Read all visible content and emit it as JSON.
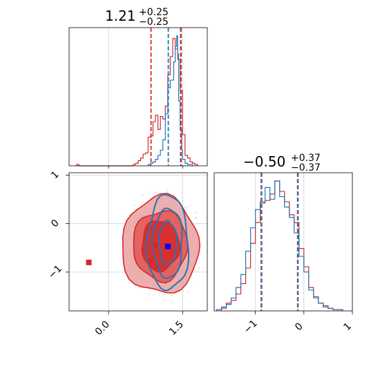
{
  "chart_data": [
    {
      "type": "histogram",
      "panel": "top-left",
      "title_value": "1.21",
      "title_plus": "+0.25",
      "title_minus": "−0.25",
      "xlim": [
        -0.8,
        2.0
      ],
      "grid": true,
      "vlines": [
        {
          "x": 0.86,
          "color": "#d62728"
        },
        {
          "x": 1.21,
          "color": "#1f77b4"
        },
        {
          "x": 1.46,
          "color": "#1f77b4"
        },
        {
          "x": 1.47,
          "color": "#d62728"
        }
      ],
      "series": [
        {
          "color": "#d62728",
          "edges": [
            -0.65,
            -0.6,
            0.5,
            0.55,
            0.6,
            0.65,
            0.7,
            0.75,
            0.8,
            0.85,
            0.9,
            0.95,
            1.0,
            1.05,
            1.1,
            1.15,
            1.2,
            1.25,
            1.3,
            1.35,
            1.4,
            1.45,
            1.5,
            1.55,
            1.6,
            1.65,
            1.7,
            1.75,
            1.8
          ],
          "values": [
            0.01,
            0,
            0.01,
            0.02,
            0.04,
            0.06,
            0.09,
            0.1,
            0.22,
            0.23,
            0.34,
            0.39,
            0.28,
            0.38,
            0.36,
            0.46,
            0.7,
            0.84,
            0.98,
            0.9,
            0.82,
            0.58,
            0.24,
            0.08,
            0.06,
            0.03,
            0.02,
            0.01
          ]
        },
        {
          "color": "#1f77b4",
          "edges": [
            0.8,
            0.85,
            0.9,
            0.95,
            1.0,
            1.05,
            1.1,
            1.15,
            1.2,
            1.25,
            1.3,
            1.32,
            1.35,
            1.38,
            1.4,
            1.42,
            1.45,
            1.48,
            1.5,
            1.55,
            1.6,
            1.65,
            1.7
          ],
          "values": [
            0.01,
            0.02,
            0.03,
            0.05,
            0.08,
            0.12,
            0.2,
            0.4,
            0.6,
            0.66,
            0.66,
            0.8,
            0.92,
            1.0,
            0.86,
            0.5,
            0.28,
            0.12,
            0.05,
            0.02,
            0.01,
            0.01
          ]
        }
      ]
    },
    {
      "type": "scatter",
      "panel": "bottom-left",
      "xlim": [
        -0.8,
        2.0
      ],
      "ylim": [
        -1.8,
        1.05
      ],
      "xticks": [
        0.0,
        1.5
      ],
      "xtick_labels": [
        "0.0",
        "1.5"
      ],
      "yticks": [
        1,
        0,
        -1
      ],
      "ytick_labels": [
        "1",
        "0",
        "−1"
      ],
      "grid": true,
      "series": [
        {
          "name": "",
          "color": "#d62728",
          "marker": "square",
          "points": [
            [
              -0.4,
              -0.8
            ],
            [
              0.85,
              -0.78
            ],
            [
              0.95,
              -0.45
            ]
          ]
        },
        {
          "name": "",
          "color": "#0000ff",
          "marker": "square",
          "points": [
            [
              1.2,
              -0.47
            ]
          ]
        }
      ],
      "contours": [
        {
          "color": "#d62728",
          "center": [
            1.05,
            -0.45
          ],
          "radii": [
            [
              0.78,
              1.0
            ],
            [
              0.55,
              0.72
            ],
            [
              0.38,
              0.52
            ]
          ]
        },
        {
          "color": "#1f77b4",
          "center": [
            1.2,
            -0.4
          ],
          "radii": [
            [
              0.42,
              0.98
            ],
            [
              0.3,
              0.72
            ],
            [
              0.18,
              0.45
            ]
          ]
        }
      ]
    },
    {
      "type": "histogram",
      "panel": "bottom-right",
      "title_value": "−0.50",
      "title_plus": "+0.37",
      "title_minus": "−0.37",
      "xlim": [
        -1.85,
        1.0
      ],
      "xticks": [
        -1,
        0,
        1
      ],
      "xtick_labels": [
        "−1",
        "0",
        "1"
      ],
      "grid": true,
      "vlines": [
        {
          "x": -0.88,
          "color": "#d62728"
        },
        {
          "x": -0.87,
          "color": "#1f77b4"
        },
        {
          "x": -0.13,
          "color": "#d62728"
        },
        {
          "x": -0.12,
          "color": "#1f77b4"
        }
      ],
      "series": [
        {
          "color": "#d62728",
          "edges": [
            -1.7,
            -1.6,
            -1.5,
            -1.4,
            -1.3,
            -1.2,
            -1.1,
            -1.0,
            -0.9,
            -0.8,
            -0.7,
            -0.6,
            -0.5,
            -0.4,
            -0.3,
            -0.2,
            -0.1,
            0.0,
            0.1,
            0.2,
            0.3,
            0.4,
            0.5,
            0.6,
            0.7,
            0.8
          ],
          "values": [
            0.02,
            0.06,
            0.08,
            0.13,
            0.21,
            0.33,
            0.52,
            0.68,
            0.83,
            0.85,
            0.9,
            1.0,
            0.92,
            0.84,
            0.74,
            0.68,
            0.48,
            0.34,
            0.18,
            0.11,
            0.06,
            0.04,
            0.02,
            0.01,
            0.01
          ]
        },
        {
          "color": "#1f77b4",
          "edges": [
            -1.8,
            -1.7,
            -1.6,
            -1.5,
            -1.4,
            -1.3,
            -1.2,
            -1.1,
            -1.0,
            -0.9,
            -0.8,
            -0.7,
            -0.6,
            -0.5,
            -0.4,
            -0.3,
            -0.2,
            -0.1,
            0.0,
            0.1,
            0.2,
            0.3,
            0.4,
            0.5,
            0.6,
            0.7,
            0.8
          ],
          "values": [
            0.01,
            0.03,
            0.05,
            0.1,
            0.18,
            0.28,
            0.46,
            0.64,
            0.78,
            0.84,
            0.95,
            0.86,
            1.0,
            0.88,
            0.8,
            0.72,
            0.6,
            0.42,
            0.3,
            0.16,
            0.1,
            0.06,
            0.03,
            0.02,
            0.01,
            0.01
          ]
        }
      ]
    }
  ]
}
